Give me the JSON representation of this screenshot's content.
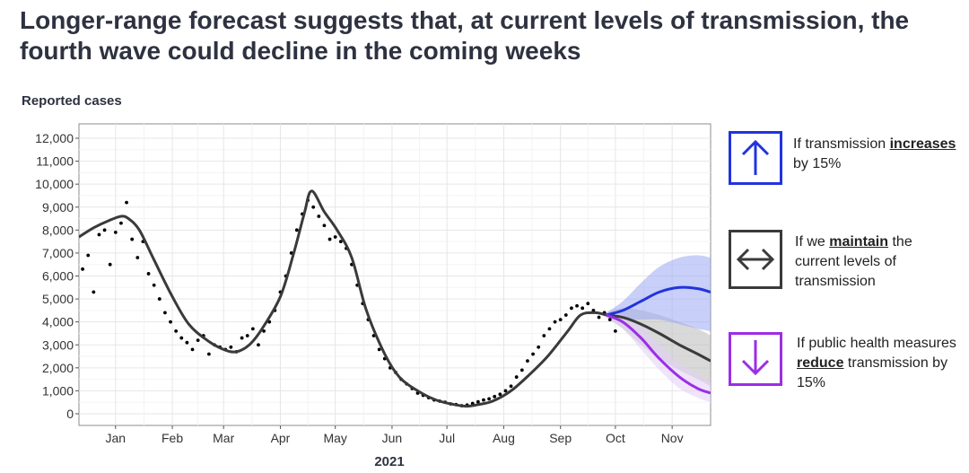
{
  "title": "Longer-range forecast suggests that, at current levels of transmission, the fourth wave could decline in the coming weeks",
  "chart_data": {
    "type": "line",
    "ylabel": "Reported cases",
    "xlabel": "2021",
    "ylim": [
      0,
      12500
    ],
    "yticks": [
      0,
      1000,
      2000,
      3000,
      4000,
      5000,
      6000,
      7000,
      8000,
      9000,
      10000,
      11000,
      12000
    ],
    "ytick_labels": [
      "0",
      "1,000",
      "2,000",
      "3,000",
      "4,000",
      "5,000",
      "6,000",
      "7,000",
      "8,000",
      "9,000",
      "10,000",
      "11,000",
      "12,000"
    ],
    "xlim": [
      "2020-12-12",
      "2021-11-22"
    ],
    "xticks": [
      "2021-01-01",
      "2021-02-01",
      "2021-03-01",
      "2021-04-01",
      "2021-05-01",
      "2021-06-01",
      "2021-07-01",
      "2021-08-01",
      "2021-09-01",
      "2021-10-01",
      "2021-11-01"
    ],
    "xtick_labels": [
      "Jan",
      "Feb",
      "Mar",
      "Apr",
      "May",
      "Jun",
      "Jul",
      "Aug",
      "Sep",
      "Oct",
      "Nov"
    ],
    "grid": true,
    "series": [
      {
        "name": "",
        "kind": "points",
        "color": "#000000",
        "x": [
          "2020-12-14",
          "2020-12-17",
          "2020-12-20",
          "2020-12-23",
          "2020-12-26",
          "2020-12-29",
          "2021-01-01",
          "2021-01-04",
          "2021-01-07",
          "2021-01-10",
          "2021-01-13",
          "2021-01-16",
          "2021-01-19",
          "2021-01-22",
          "2021-01-25",
          "2021-01-28",
          "2021-01-31",
          "2021-02-03",
          "2021-02-06",
          "2021-02-09",
          "2021-02-12",
          "2021-02-15",
          "2021-02-18",
          "2021-02-21",
          "2021-02-24",
          "2021-02-27",
          "2021-03-02",
          "2021-03-05",
          "2021-03-08",
          "2021-03-11",
          "2021-03-14",
          "2021-03-17",
          "2021-03-20",
          "2021-03-23",
          "2021-03-26",
          "2021-03-29",
          "2021-04-01",
          "2021-04-04",
          "2021-04-07",
          "2021-04-10",
          "2021-04-13",
          "2021-04-16",
          "2021-04-19",
          "2021-04-22",
          "2021-04-25",
          "2021-04-28",
          "2021-05-01",
          "2021-05-04",
          "2021-05-07",
          "2021-05-10",
          "2021-05-13",
          "2021-05-16",
          "2021-05-19",
          "2021-05-22",
          "2021-05-25",
          "2021-05-28",
          "2021-05-31",
          "2021-06-03",
          "2021-06-06",
          "2021-06-09",
          "2021-06-12",
          "2021-06-15",
          "2021-06-18",
          "2021-06-21",
          "2021-06-24",
          "2021-06-27",
          "2021-06-30",
          "2021-07-03",
          "2021-07-06",
          "2021-07-09",
          "2021-07-12",
          "2021-07-15",
          "2021-07-18",
          "2021-07-21",
          "2021-07-24",
          "2021-07-27",
          "2021-07-30",
          "2021-08-02",
          "2021-08-05",
          "2021-08-08",
          "2021-08-11",
          "2021-08-14",
          "2021-08-17",
          "2021-08-20",
          "2021-08-23",
          "2021-08-26",
          "2021-08-29",
          "2021-09-01",
          "2021-09-04",
          "2021-09-07",
          "2021-09-10",
          "2021-09-13",
          "2021-09-16",
          "2021-09-19",
          "2021-09-22",
          "2021-09-25",
          "2021-09-28",
          "2021-10-01"
        ],
        "y": [
          6300,
          6900,
          5300,
          7800,
          8000,
          6500,
          7900,
          8300,
          9200,
          7600,
          6800,
          7500,
          6100,
          5600,
          5000,
          4400,
          4000,
          3600,
          3300,
          3100,
          2800,
          3200,
          3400,
          2600,
          3000,
          2900,
          2800,
          2900,
          2700,
          3300,
          3400,
          3700,
          3000,
          3600,
          4000,
          4500,
          5300,
          6000,
          7000,
          8000,
          8700,
          9300,
          9000,
          8600,
          8200,
          7600,
          7700,
          7500,
          7200,
          6500,
          5600,
          4800,
          4100,
          3400,
          2800,
          2400,
          2000,
          1800,
          1500,
          1300,
          1100,
          900,
          800,
          700,
          600,
          550,
          500,
          430,
          400,
          350,
          380,
          450,
          520,
          600,
          650,
          750,
          850,
          1000,
          1200,
          1600,
          1900,
          2300,
          2600,
          2900,
          3400,
          3700,
          4000,
          4100,
          4300,
          4600,
          4700,
          4600,
          4800,
          4500,
          4200,
          4400,
          4100,
          3600
        ]
      },
      {
        "name": "",
        "kind": "fit",
        "color": "#3a3a3a",
        "x": [
          "2020-12-12",
          "2020-12-20",
          "2020-12-28",
          "2021-01-04",
          "2021-01-08",
          "2021-01-14",
          "2021-01-22",
          "2021-02-01",
          "2021-02-10",
          "2021-02-20",
          "2021-03-01",
          "2021-03-08",
          "2021-03-15",
          "2021-03-22",
          "2021-04-01",
          "2021-04-08",
          "2021-04-14",
          "2021-04-18",
          "2021-04-25",
          "2021-05-02",
          "2021-05-10",
          "2021-05-18",
          "2021-05-28",
          "2021-06-05",
          "2021-06-15",
          "2021-06-25",
          "2021-07-05",
          "2021-07-12",
          "2021-07-18",
          "2021-07-26",
          "2021-08-05",
          "2021-08-15",
          "2021-08-25",
          "2021-09-05",
          "2021-09-12",
          "2021-09-20",
          "2021-09-26"
        ],
        "y": [
          7700,
          8100,
          8400,
          8600,
          8500,
          8000,
          6700,
          5100,
          3900,
          3200,
          2800,
          2700,
          3000,
          3700,
          5100,
          6900,
          8700,
          9700,
          8800,
          8000,
          6800,
          4500,
          2600,
          1600,
          1000,
          600,
          400,
          330,
          400,
          550,
          1000,
          1700,
          2500,
          3600,
          4300,
          4400,
          4300
        ]
      },
      {
        "name": "If we maintain the current levels of transmission",
        "kind": "forecast",
        "color": "#3a3a3a",
        "band_color": "#b9b9b9",
        "x": [
          "2021-09-26",
          "2021-10-05",
          "2021-10-15",
          "2021-10-25",
          "2021-11-05",
          "2021-11-15",
          "2021-11-22"
        ],
        "y": [
          4300,
          4200,
          3900,
          3500,
          3000,
          2600,
          2300
        ],
        "lower": [
          4200,
          3700,
          3000,
          2400,
          1900,
          1500,
          1200
        ],
        "upper": [
          4400,
          4600,
          4500,
          4300,
          4000,
          3700,
          3400
        ]
      },
      {
        "name": "If transmission increases by 15%",
        "kind": "forecast",
        "color": "#2233dd",
        "band_color": "#9aa7f3",
        "x": [
          "2021-09-26",
          "2021-10-05",
          "2021-10-15",
          "2021-10-25",
          "2021-11-05",
          "2021-11-15",
          "2021-11-22"
        ],
        "y": [
          4300,
          4500,
          4900,
          5300,
          5500,
          5450,
          5300
        ],
        "lower": [
          4200,
          4100,
          4100,
          4100,
          3900,
          3700,
          3600
        ],
        "upper": [
          4400,
          4900,
          5700,
          6400,
          6800,
          6900,
          6800
        ]
      },
      {
        "name": "If public health measures reduce transmission by 15%",
        "kind": "forecast",
        "color": "#9b2ee6",
        "band_color": "#e3cdf7",
        "x": [
          "2021-09-26",
          "2021-10-05",
          "2021-10-15",
          "2021-10-25",
          "2021-11-05",
          "2021-11-15",
          "2021-11-22"
        ],
        "y": [
          4300,
          4000,
          3300,
          2400,
          1600,
          1100,
          900
        ],
        "lower": [
          4200,
          3700,
          2800,
          1900,
          1100,
          700,
          500
        ],
        "upper": [
          4400,
          4300,
          3800,
          3000,
          2200,
          1700,
          1400
        ]
      }
    ],
    "legend": [
      {
        "icon": "up-arrow-icon",
        "color": "#2233dd",
        "text_before": "If transmission ",
        "bold": "increases ",
        "text_after": "by 15%"
      },
      {
        "icon": "double-arrow-icon",
        "color": "#3a3a3a",
        "text_before": "If we ",
        "bold": "maintain",
        "text_after": " the current levels of transmission"
      },
      {
        "icon": "down-arrow-icon",
        "color": "#9b2ee6",
        "text_before": "If public health measures ",
        "bold": "reduce",
        "text_after": " transmission by 15%"
      }
    ]
  }
}
